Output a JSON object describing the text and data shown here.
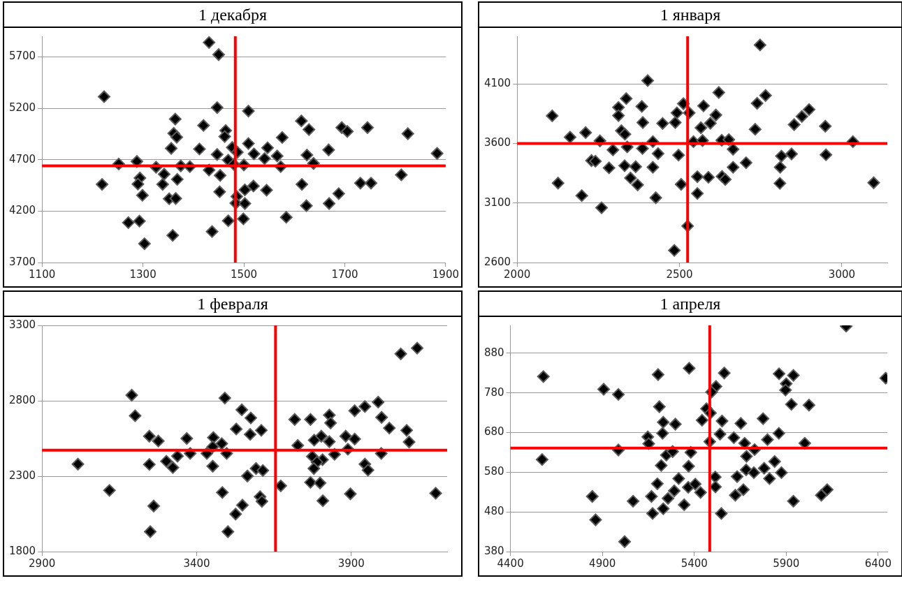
{
  "chart_data": [
    {
      "type": "scatter",
      "title": "1 декабря",
      "xlim": [
        1100,
        1900
      ],
      "xticks": [
        1100,
        1300,
        1500,
        1700,
        1900
      ],
      "ylim": [
        3700,
        5900
      ],
      "yticks": [
        3700,
        4200,
        4700,
        5200,
        5700
      ],
      "grid": "y",
      "legend": false,
      "marker": "diamond",
      "ref_lines": [
        {
          "axis": "x",
          "value": 1483,
          "color": "#ff0000"
        },
        {
          "axis": "y",
          "value": 4640,
          "color": "#ff0000"
        }
      ],
      "series": [
        {
          "color": "#000000",
          "x": [
            1431,
            1450,
            1223,
            1447,
            1509,
            1364,
            1420,
            1614,
            1629,
            1464,
            1361,
            1367,
            1462,
            1694,
            1705,
            1745,
            1825,
            1576,
            1356,
            1412,
            1477,
            1509,
            1547,
            1668,
            1883,
            1447,
            1469,
            1487,
            1520,
            1541,
            1566,
            1625,
            1252,
            1288,
            1326,
            1375,
            1393,
            1431,
            1480,
            1500,
            1573,
            1638,
            1342,
            1294,
            1290,
            1368,
            1453,
            1219,
            1339,
            1519,
            1502,
            1545,
            1615,
            1731,
            1752,
            1812,
            1299,
            1352,
            1365,
            1452,
            1486,
            1484,
            1502,
            1624,
            1688,
            1669,
            1584,
            1271,
            1293,
            1469,
            1499,
            1359,
            1437,
            1303
          ],
          "values": [
            5840,
            5722,
            5313,
            5207,
            5173,
            5095,
            5033,
            5077,
            4993,
            4984,
            4956,
            4919,
            4925,
            5012,
            4975,
            5012,
            4953,
            4916,
            4810,
            4804,
            4819,
            4857,
            4816,
            4795,
            4761,
            4751,
            4696,
            4773,
            4757,
            4711,
            4736,
            4745,
            4658,
            4683,
            4627,
            4640,
            4633,
            4599,
            4655,
            4649,
            4633,
            4664,
            4559,
            4522,
            4463,
            4509,
            4547,
            4460,
            4460,
            4444,
            4407,
            4404,
            4460,
            4472,
            4472,
            4553,
            4354,
            4320,
            4323,
            4388,
            4342,
            4277,
            4274,
            4252,
            4370,
            4274,
            4140,
            4088,
            4103,
            4106,
            4125,
            3964,
            4001,
            3883
          ]
        }
      ]
    },
    {
      "type": "scatter",
      "title": "1 января",
      "xlim": [
        2000,
        3140
      ],
      "xticks": [
        2000,
        2500,
        3000
      ],
      "ylim": [
        2600,
        4500
      ],
      "yticks": [
        2600,
        3100,
        3600,
        4100
      ],
      "grid": "y",
      "legend": false,
      "marker": "diamond",
      "ref_lines": [
        {
          "axis": "x",
          "value": 2525,
          "color": "#ff0000"
        },
        {
          "axis": "y",
          "value": 3600,
          "color": "#ff0000"
        }
      ],
      "series": [
        {
          "color": "#000000",
          "x": [
            2748,
            2402,
            2621,
            2336,
            2765,
            2312,
            2384,
            2512,
            2574,
            2739,
            2108,
            2312,
            2492,
            2530,
            2612,
            2899,
            2877,
            2387,
            2448,
            2487,
            2595,
            2566,
            2853,
            2949,
            2733,
            2321,
            2211,
            2163,
            2332,
            2255,
            2418,
            2543,
            2571,
            2630,
            2652,
            3034,
            2339,
            2295,
            2386,
            2434,
            2497,
            2665,
            2229,
            2241,
            2814,
            2845,
            2951,
            2283,
            2331,
            2365,
            2418,
            2705,
            2665,
            2810,
            2349,
            2371,
            2555,
            2589,
            2631,
            2641,
            2126,
            2505,
            2809,
            3098,
            2199,
            2427,
            2555,
            2260,
            2525,
            2484
          ],
          "values": [
            4427,
            4128,
            4028,
            3977,
            4003,
            3903,
            3911,
            3934,
            3916,
            3937,
            3832,
            3834,
            3857,
            3857,
            3839,
            3885,
            3827,
            3776,
            3768,
            3776,
            3770,
            3732,
            3758,
            3745,
            3719,
            3707,
            3691,
            3653,
            3678,
            3622,
            3615,
            3615,
            3625,
            3627,
            3632,
            3615,
            3571,
            3546,
            3558,
            3515,
            3502,
            3551,
            3456,
            3451,
            3494,
            3512,
            3505,
            3395,
            3413,
            3405,
            3400,
            3438,
            3400,
            3400,
            3310,
            3252,
            3321,
            3316,
            3323,
            3298,
            3267,
            3257,
            3265,
            3270,
            3162,
            3144,
            3180,
            3060,
            2907,
            2702
          ]
        }
      ]
    },
    {
      "type": "scatter",
      "title": "1 февраля",
      "xlim": [
        2900,
        4210
      ],
      "xticks": [
        2900,
        3400,
        3900
      ],
      "ylim": [
        1800,
        3300
      ],
      "yticks": [
        1800,
        2300,
        2800,
        3300
      ],
      "grid": "y",
      "legend": false,
      "marker": "diamond",
      "ref_lines": [
        {
          "axis": "x",
          "value": 3655,
          "color": "#ff0000"
        },
        {
          "axis": "y",
          "value": 2472,
          "color": "#ff0000"
        }
      ],
      "series": [
        {
          "color": "#000000",
          "x": [
            4113,
            4060,
            3190,
            3491,
            3987,
            3944,
            3911,
            3546,
            3201,
            3575,
            3998,
            3717,
            3768,
            3829,
            3833,
            3528,
            3609,
            3573,
            4023,
            4079,
            4087,
            3247,
            3276,
            3368,
            3454,
            3481,
            3803,
            3829,
            3882,
            3911,
            3780,
            3727,
            3889,
            3452,
            3338,
            3379,
            3433,
            3497,
            3774,
            3846,
            3997,
            3807,
            3789,
            3016,
            3247,
            3302,
            3323,
            3452,
            3944,
            3954,
            3779,
            3592,
            3614,
            3564,
            3672,
            3768,
            3799,
            3118,
            3483,
            3897,
            4173,
            3605,
            3611,
            3808,
            3548,
            3261,
            3526,
            3250,
            3501
          ],
          "values": [
            3149,
            3111,
            2837,
            2818,
            2791,
            2762,
            2734,
            2740,
            2701,
            2686,
            2690,
            2676,
            2676,
            2705,
            2653,
            2613,
            2604,
            2577,
            2619,
            2604,
            2527,
            2565,
            2533,
            2550,
            2556,
            2516,
            2565,
            2529,
            2565,
            2546,
            2539,
            2504,
            2479,
            2495,
            2433,
            2451,
            2451,
            2451,
            2431,
            2445,
            2451,
            2409,
            2393,
            2380,
            2378,
            2399,
            2357,
            2366,
            2380,
            2340,
            2351,
            2351,
            2338,
            2301,
            2236,
            2259,
            2255,
            2206,
            2192,
            2183,
            2187,
            2164,
            2133,
            2137,
            2108,
            2102,
            2049,
            1932,
            1932
          ]
        }
      ]
    },
    {
      "type": "scatter",
      "title": "1 апреля",
      "xlim": [
        4400,
        6450
      ],
      "xticks": [
        4400,
        4900,
        5400,
        5900,
        6400
      ],
      "ylim": [
        380,
        950
      ],
      "yticks": [
        380,
        480,
        580,
        680,
        780,
        880
      ],
      "grid": "y",
      "legend": false,
      "marker": "diamond",
      "ref_lines": [
        {
          "axis": "x",
          "value": 5484,
          "color": "#ff0000"
        },
        {
          "axis": "y",
          "value": 641,
          "color": "#ff0000"
        }
      ],
      "series": [
        {
          "color": "#000000",
          "x": [
            6226,
            4579,
            5203,
            5372,
            5563,
            5861,
            5939,
            6441,
            4907,
            4987,
            5518,
            5494,
            5900,
            5896,
            5210,
            5928,
            6024,
            5466,
            5488,
            5442,
            5231,
            5297,
            5551,
            5653,
            5774,
            5227,
            5540,
            5147,
            5152,
            5484,
            5615,
            5674,
            5798,
            5860,
            6001,
            4987,
            5248,
            5282,
            5381,
            5684,
            5728,
            4572,
            5220,
            5369,
            5837,
            5682,
            5724,
            5780,
            5874,
            5809,
            5315,
            5514,
            5633,
            5199,
            5367,
            5405,
            5434,
            5515,
            5291,
            5257,
            5167,
            5623,
            5667,
            6091,
            6123,
            4845,
            5067,
            5939,
            5345,
            5231,
            5173,
            5547,
            4863,
            5021
          ],
          "values": [
            948,
            821,
            826,
            842,
            830,
            828,
            824,
            817,
            789,
            776,
            796,
            782,
            803,
            787,
            745,
            751,
            749,
            740,
            729,
            711,
            706,
            701,
            709,
            703,
            715,
            678,
            676,
            669,
            652,
            657,
            667,
            653,
            662,
            678,
            653,
            636,
            623,
            632,
            630,
            620,
            637,
            612,
            597,
            595,
            607,
            586,
            579,
            590,
            579,
            564,
            564,
            568,
            569,
            551,
            542,
            550,
            529,
            543,
            533,
            514,
            519,
            522,
            536,
            522,
            536,
            519,
            507,
            507,
            498,
            488,
            476,
            476,
            460,
            405
          ]
        }
      ]
    }
  ]
}
